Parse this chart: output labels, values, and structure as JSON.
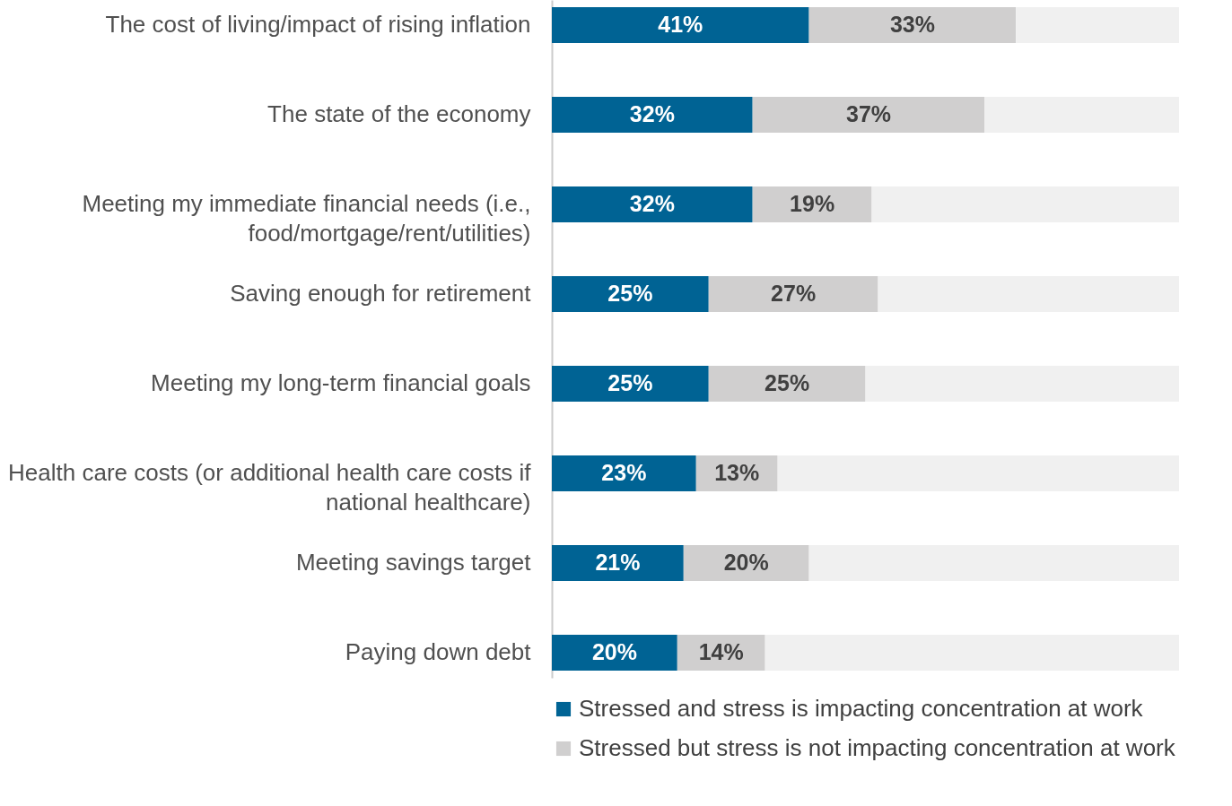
{
  "chart_data": {
    "type": "bar",
    "orientation": "horizontal",
    "stacked": true,
    "categories": [
      "The cost of living/impact of rising inflation",
      "The state of the economy",
      "Meeting my immediate financial needs (i.e., food/mortgage/rent/utilities)",
      "Saving enough for retirement",
      "Meeting my long-term financial goals",
      "Health care costs (or additional health care costs if national healthcare)",
      "Meeting savings target",
      "Paying down debt"
    ],
    "series": [
      {
        "name": "Stressed and stress is impacting concentration at work",
        "color": "#006394",
        "values": [
          41,
          32,
          32,
          25,
          25,
          23,
          21,
          20
        ],
        "value_labels": [
          "41%",
          "32%",
          "32%",
          "25%",
          "25%",
          "23%",
          "21%",
          "20%"
        ]
      },
      {
        "name": "Stressed but stress is not impacting concentration at work",
        "color": "#d0cfcf",
        "values": [
          33,
          37,
          19,
          27,
          25,
          13,
          20,
          14
        ],
        "value_labels": [
          "33%",
          "37%",
          "19%",
          "27%",
          "25%",
          "13%",
          "20%",
          "14%"
        ]
      },
      {
        "color": "#f0f0f0",
        "values": [
          26,
          31,
          49,
          48,
          50,
          64,
          59,
          66
        ]
      }
    ],
    "xlim": [
      0,
      100
    ],
    "tick_labels": "y",
    "grid": false,
    "legend": "bottom"
  }
}
